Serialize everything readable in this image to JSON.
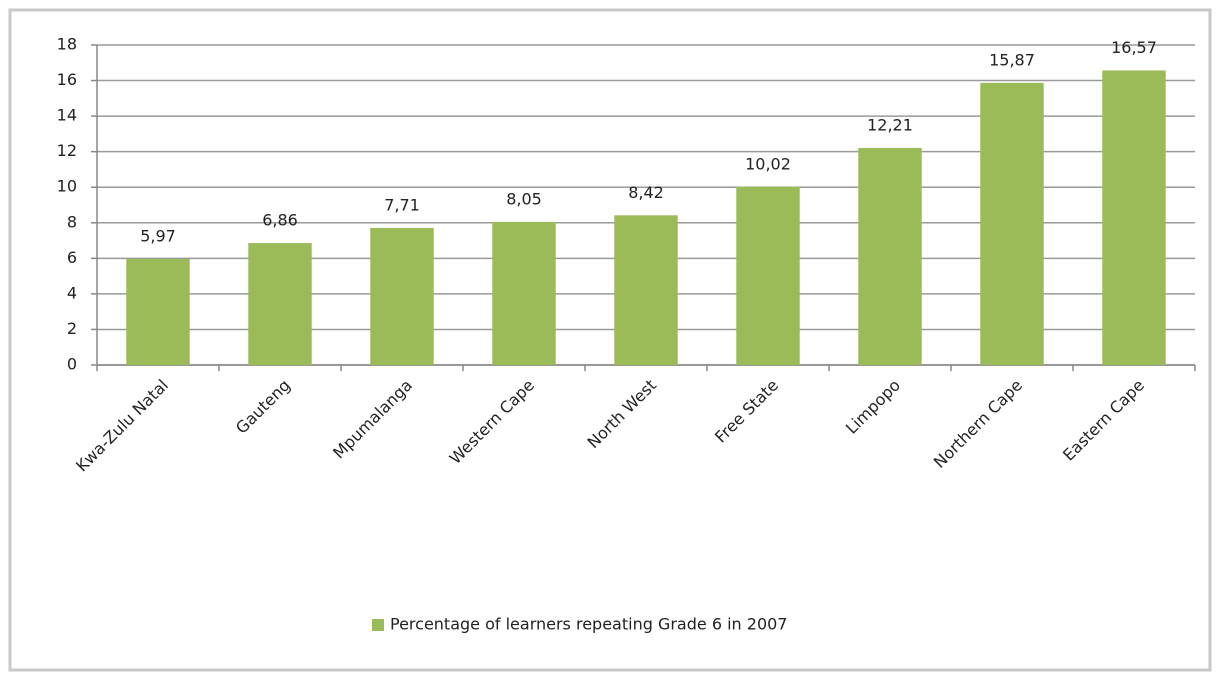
{
  "chart_data": {
    "type": "bar",
    "categories": [
      "Kwa-Zulu Natal",
      "Gauteng",
      "Mpumalanga",
      "Western Cape",
      "North West",
      "Free State",
      "Limpopo",
      "Northern Cape",
      "Eastern Cape"
    ],
    "series": [
      {
        "name": "Percentage of learners repeating Grade 6 in 2007",
        "color": "#9bbb59",
        "values": [
          5.97,
          6.86,
          7.71,
          8.05,
          8.42,
          10.02,
          12.21,
          15.87,
          16.57
        ],
        "value_labels": [
          "5,97",
          "6,86",
          "7,71",
          "8,05",
          "8,42",
          "10,02",
          "12,21",
          "15,87",
          "16,57"
        ]
      }
    ],
    "ylim": [
      0,
      18
    ],
    "yticks": [
      0,
      2,
      4,
      6,
      8,
      10,
      12,
      14,
      16,
      18
    ],
    "grid": true,
    "legend": "bottom"
  }
}
